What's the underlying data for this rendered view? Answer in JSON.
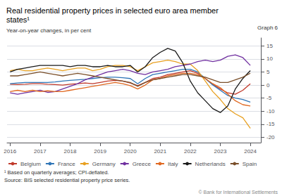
{
  "chart_data": {
    "type": "line",
    "title": "Real residential property prices in selected euro area member\nstates¹",
    "subtitle": "Year-on-year changes, in per cent",
    "annotations": [
      "Graph 6",
      "¹ Based on quarterly averages; CPI-deflated.",
      "Source: BIS selected residential property price series.",
      "© Bank for International Settlements"
    ],
    "x": [
      2016.0,
      2016.25,
      2016.5,
      2016.75,
      2017.0,
      2017.25,
      2017.5,
      2017.75,
      2018.0,
      2018.25,
      2018.5,
      2018.75,
      2019.0,
      2019.25,
      2019.5,
      2019.75,
      2020.0,
      2020.25,
      2020.5,
      2020.75,
      2021.0,
      2021.25,
      2021.5,
      2021.75,
      2022.0,
      2022.25,
      2022.5,
      2022.75,
      2023.0,
      2023.25,
      2023.5,
      2023.75,
      2024.0
    ],
    "series": [
      {
        "name": "Belgium",
        "color": "#c0392b",
        "values": [
          0.3,
          0.2,
          0.3,
          0.5,
          0.5,
          0.3,
          0.2,
          0.0,
          0.3,
          0.5,
          0.8,
          0.5,
          1.0,
          1.5,
          1.8,
          1.5,
          0.8,
          -0.2,
          1.0,
          2.5,
          3.0,
          4.0,
          4.5,
          5.0,
          5.5,
          4.5,
          2.5,
          0.2,
          -1.5,
          -3.0,
          -3.5,
          -2.0,
          0.5
        ]
      },
      {
        "name": "France",
        "color": "#2e75b6",
        "values": [
          0.5,
          0.8,
          1.0,
          1.0,
          1.0,
          1.0,
          1.2,
          1.5,
          1.8,
          2.0,
          2.2,
          2.5,
          2.8,
          3.0,
          3.0,
          2.8,
          2.5,
          0.5,
          2.5,
          4.0,
          4.5,
          5.0,
          5.5,
          6.0,
          6.0,
          5.0,
          2.5,
          0.0,
          -2.0,
          -4.0,
          -5.0,
          -5.5,
          -6.5
        ]
      },
      {
        "name": "Germany",
        "color": "#e8a020",
        "values": [
          5.5,
          6.0,
          5.5,
          5.5,
          6.0,
          6.5,
          6.0,
          5.5,
          6.0,
          6.5,
          6.5,
          5.5,
          6.0,
          7.0,
          7.5,
          7.5,
          7.0,
          5.5,
          7.0,
          8.5,
          9.0,
          9.5,
          9.0,
          8.0,
          8.0,
          5.5,
          1.5,
          -2.5,
          -5.5,
          -9.0,
          -11.0,
          -12.5,
          -16.5
        ]
      },
      {
        "name": "Greece",
        "color": "#7030a0",
        "values": [
          -3.0,
          -3.5,
          -3.0,
          -2.5,
          -2.0,
          -2.8,
          -2.5,
          -1.5,
          -0.5,
          0.5,
          2.0,
          3.0,
          4.0,
          5.0,
          5.5,
          6.0,
          5.5,
          4.5,
          4.0,
          5.0,
          5.5,
          6.0,
          7.0,
          7.5,
          8.0,
          9.0,
          9.5,
          9.0,
          9.5,
          11.0,
          11.5,
          10.5,
          7.5
        ]
      },
      {
        "name": "Italy",
        "color": "#e06820",
        "values": [
          -2.5,
          -2.0,
          -2.5,
          -2.0,
          -2.5,
          -2.2,
          -2.5,
          -2.5,
          -2.0,
          -1.5,
          -1.0,
          -0.5,
          0.0,
          0.5,
          1.0,
          0.5,
          -0.2,
          -1.5,
          0.0,
          2.0,
          2.5,
          3.5,
          4.0,
          4.5,
          4.5,
          4.0,
          2.5,
          0.5,
          -1.0,
          -3.5,
          -6.0,
          -7.5,
          -8.0
        ]
      },
      {
        "name": "Netherlands",
        "color": "#1a1a1a",
        "values": [
          5.0,
          6.0,
          6.5,
          7.0,
          7.5,
          7.5,
          7.5,
          7.5,
          7.0,
          7.5,
          7.5,
          7.0,
          7.0,
          7.5,
          7.0,
          7.0,
          7.5,
          5.0,
          7.0,
          10.5,
          12.5,
          14.0,
          13.0,
          8.5,
          1.5,
          -3.0,
          -6.0,
          -9.0,
          -10.5,
          -8.0,
          -1.5,
          2.5,
          5.5
        ]
      },
      {
        "name": "Spain",
        "color": "#7a4f2a",
        "values": [
          3.5,
          3.5,
          4.0,
          4.5,
          5.0,
          4.5,
          4.0,
          3.5,
          4.0,
          4.5,
          4.0,
          3.5,
          3.0,
          2.5,
          2.0,
          1.5,
          1.0,
          -0.5,
          1.0,
          2.0,
          2.5,
          3.0,
          3.5,
          4.0,
          4.0,
          3.5,
          3.0,
          2.0,
          1.0,
          1.0,
          2.0,
          3.0,
          4.5
        ]
      }
    ],
    "xlim": [
      2015.9,
      2024.35
    ],
    "xticks": [
      2016,
      2017,
      2018,
      2019,
      2020,
      2021,
      2022,
      2023,
      2024
    ],
    "ylim": [
      -22,
      18
    ],
    "yticks": [
      -20,
      -15,
      -10,
      -5,
      0,
      5,
      10,
      15
    ],
    "grid": true,
    "legend": "bottom"
  }
}
